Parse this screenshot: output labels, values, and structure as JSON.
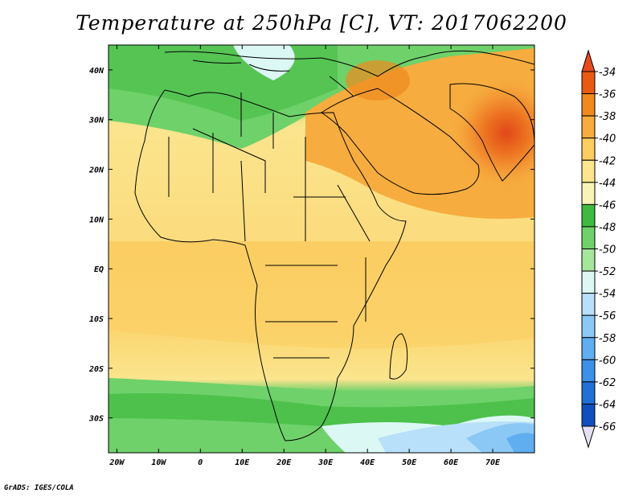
{
  "title": "Temperature at 250hPa [C], VT: 2017062200",
  "credit": "GrADS: IGES/COLA",
  "map": {
    "lon_range": [
      -22,
      80
    ],
    "lat_range": [
      -37,
      45
    ],
    "x_ticks": [
      "20W",
      "10W",
      "0",
      "10E",
      "20E",
      "30E",
      "40E",
      "50E",
      "60E",
      "70E"
    ],
    "y_ticks": [
      "40N",
      "30N",
      "20N",
      "10N",
      "EQ",
      "10S",
      "20S",
      "30S"
    ]
  },
  "colorbar": {
    "labels": [
      "-34",
      "-36",
      "-38",
      "-40",
      "-42",
      "-44",
      "-46",
      "-48",
      "-50",
      "-52",
      "-54",
      "-56",
      "-58",
      "-60",
      "-62",
      "-64",
      "-66"
    ],
    "colors": [
      "#e85a14",
      "#f08a20",
      "#f6ac3e",
      "#fbcd62",
      "#fbe58e",
      "#f8f3b6",
      "#3fba3f",
      "#6fd16a",
      "#a5e59c",
      "#dcf8f5",
      "#b8e0fa",
      "#8cc8f5",
      "#60aef0",
      "#3c90e6",
      "#2070d6",
      "#0f4fbe",
      "#0a2a8e"
    ],
    "arrow_top_color": "#e8491e",
    "arrow_bottom_color": "#e6e0f5"
  }
}
